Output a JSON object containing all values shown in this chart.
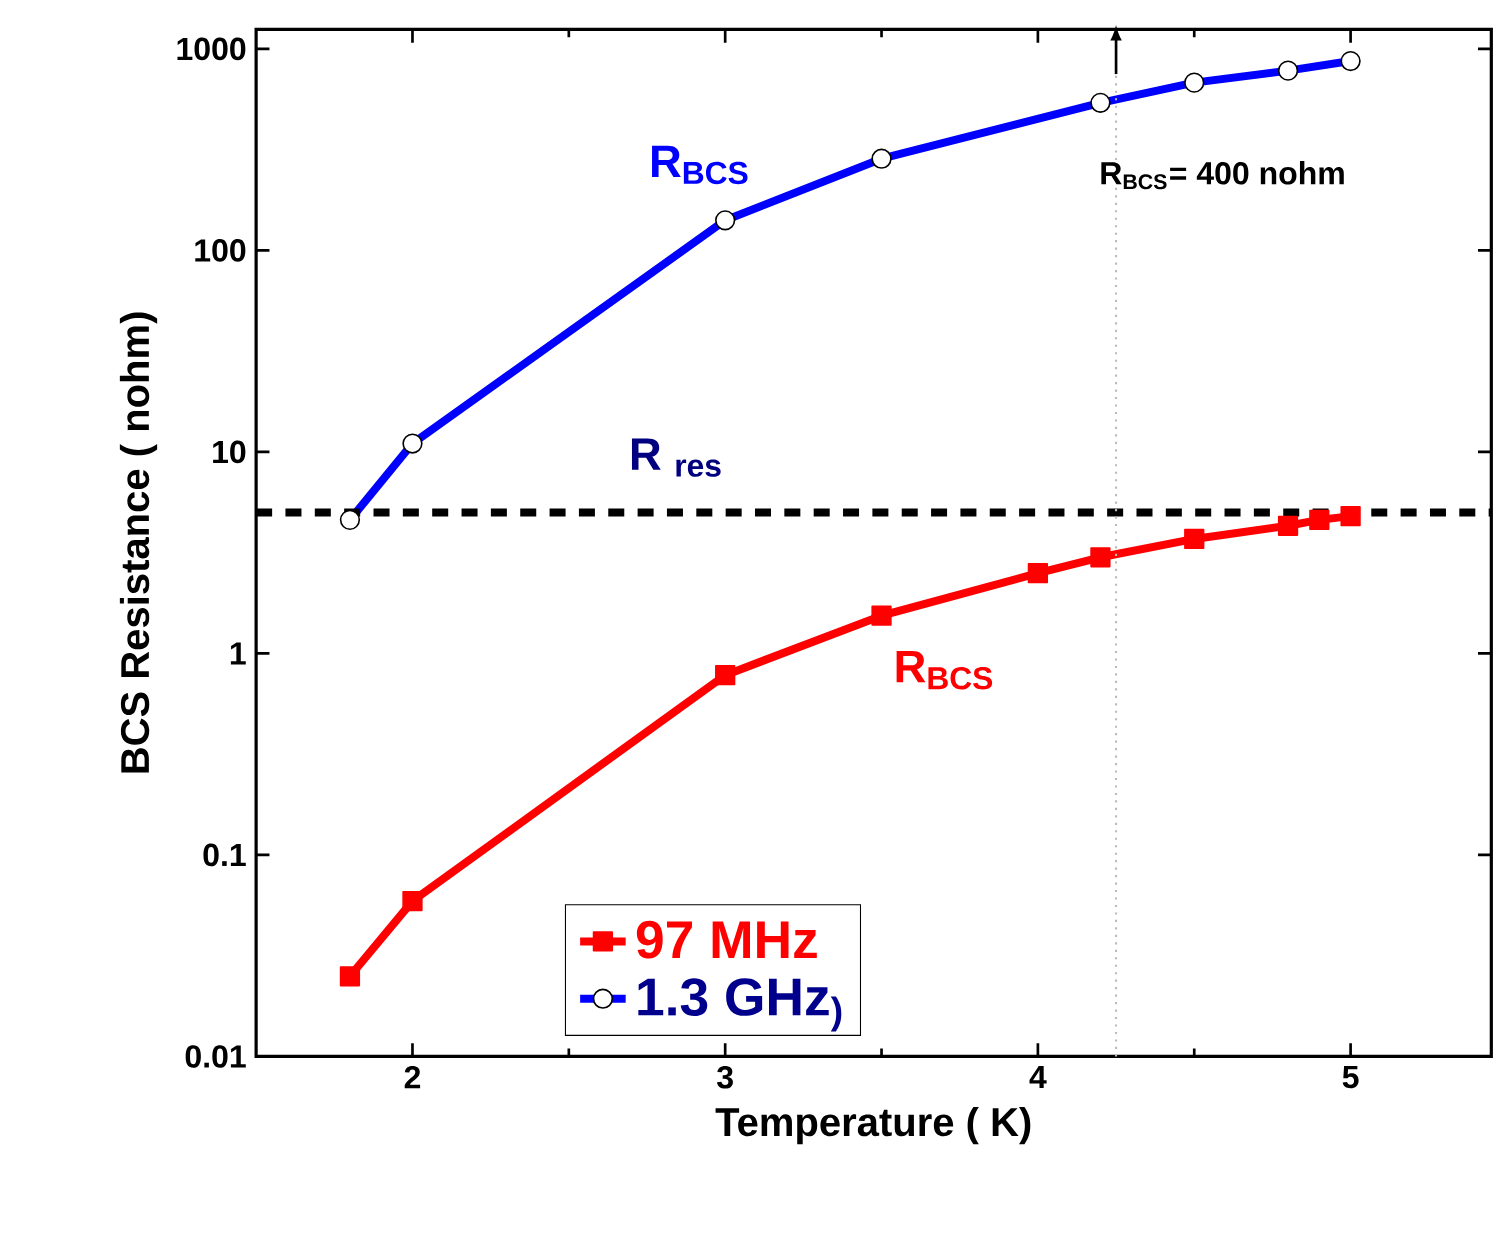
{
  "chart_data": {
    "type": "line",
    "xlabel": "Temperature ( K)",
    "ylabel": "BCS Resistance ( nohm)",
    "xlim": [
      1.5,
      5.45
    ],
    "ylim": [
      0.01,
      1250
    ],
    "log": "y",
    "xticks": [
      2,
      3,
      4,
      5
    ],
    "yticks": [
      0.01,
      0.1,
      1,
      10,
      100,
      1000
    ],
    "series": [
      {
        "name": "97 MHz",
        "color": "#ff0000",
        "marker": "square",
        "x": [
          1.8,
          2,
          3,
          3.5,
          4,
          4.2,
          4.5,
          4.8,
          4.9,
          5
        ],
        "values": [
          0.025,
          0.059,
          0.78,
          1.54,
          2.5,
          3.0,
          3.7,
          4.3,
          4.6,
          4.8
        ]
      },
      {
        "name": "1.3 GHz$_{)}$",
        "color": "#0000ff",
        "marker": "circle",
        "x": [
          1.8,
          2,
          3,
          3.5,
          4.2,
          4.5,
          4.8,
          5
        ],
        "values": [
          4.6,
          11,
          141,
          285,
          540,
          680,
          780,
          870
        ]
      }
    ],
    "ref_lines": [
      {
        "axis": "y",
        "value": 5,
        "label": "R $_{res}$",
        "color": "#000000",
        "line_style": "dashed"
      },
      {
        "axis": "x",
        "value": 4.25,
        "color": "#bbbbbb",
        "line_style": "dotted"
      }
    ],
    "annotations": [
      "R$_{BCS}$",
      "R$_{BCS}$",
      "R$_{BCS}$= 400 nohm"
    ],
    "legend": "bottom"
  }
}
